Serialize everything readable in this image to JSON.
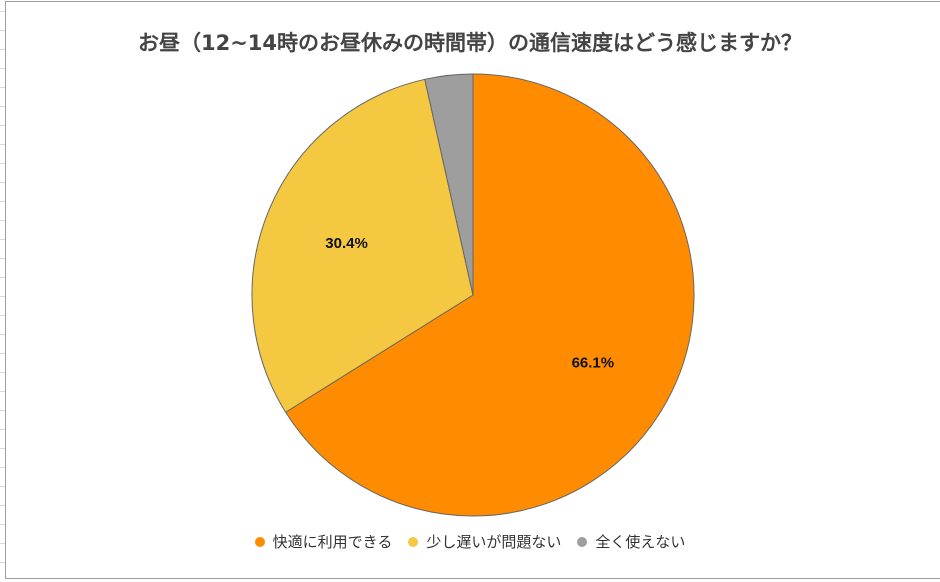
{
  "chart_data": {
    "type": "pie",
    "title": "お昼（12~14時のお昼休みの時間帯）の通信速度はどう感じますか？",
    "categories": [
      "快適に利用できる",
      "少し遅いが問題ない",
      "全く使えない"
    ],
    "values": [
      66.1,
      30.4,
      3.5
    ],
    "labels": [
      "66.1%",
      "30.4%",
      ""
    ],
    "colors": [
      "#ff8c00",
      "#f5c842",
      "#9e9e9e"
    ],
    "legend_position": "bottom",
    "start_angle": "12 o'clock, clockwise"
  },
  "legend": [
    {
      "label": "快適に利用できる",
      "color": "#ff8c00"
    },
    {
      "label": "少し遅いが問題ない",
      "color": "#f5c842"
    },
    {
      "label": "全く使えない",
      "color": "#9e9e9e"
    }
  ]
}
